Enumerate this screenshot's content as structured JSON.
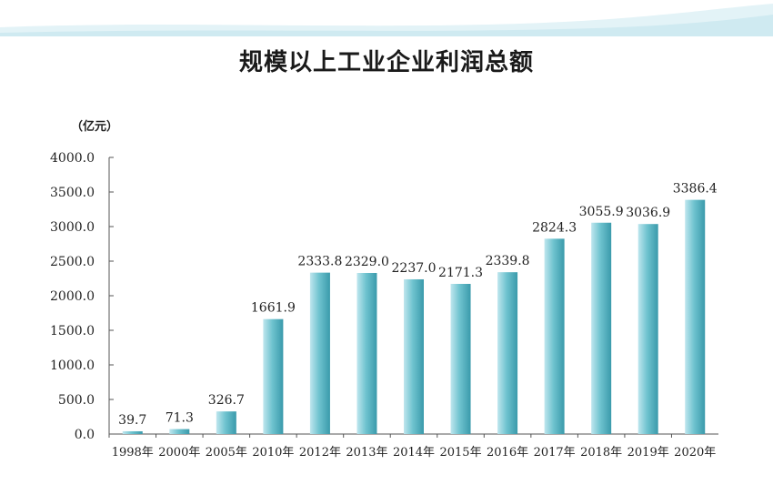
{
  "chart_data": {
    "type": "bar",
    "title": "规模以上工业企业利润总额",
    "ylabel": "（亿元）",
    "xlabel": "",
    "categories": [
      "1998年",
      "2000年",
      "2005年",
      "2010年",
      "2012年",
      "2013年",
      "2014年",
      "2015年",
      "2016年",
      "2017年",
      "2018年",
      "2019年",
      "2020年"
    ],
    "values": [
      39.7,
      71.3,
      326.7,
      1661.9,
      2333.8,
      2329.0,
      2237.0,
      2171.3,
      2339.8,
      2824.3,
      3055.9,
      3036.9,
      3386.4
    ],
    "value_labels": [
      "39.7",
      "71.3",
      "326.7",
      "1661.9",
      "2333.8",
      "2329.0",
      "2237.0",
      "2171.3",
      "2339.8",
      "2824.3",
      "3055.9",
      "3036.9",
      "3386.4"
    ],
    "yticks": [
      "0.0",
      "500.0",
      "1000.0",
      "1500.0",
      "2000.0",
      "2500.0",
      "3000.0",
      "3500.0",
      "4000.0"
    ],
    "ylim": [
      0,
      4000
    ],
    "grid": false,
    "colors": {
      "bar_light": "#bfe6ee",
      "bar_mid": "#6fc3cf",
      "bar_dark": "#3a9aab",
      "axis": "#555555"
    }
  }
}
